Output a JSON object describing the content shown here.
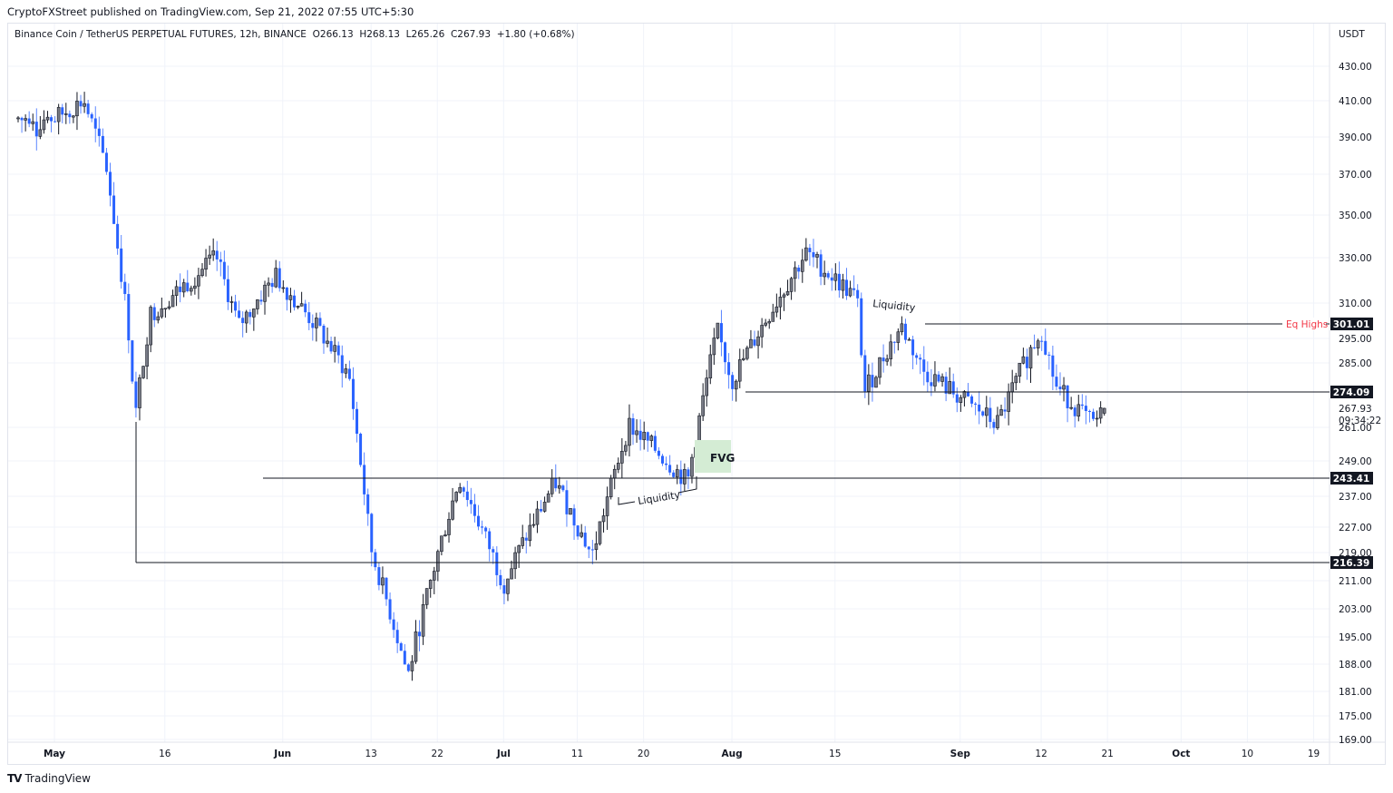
{
  "header": {
    "publisher_line": "CryptoFXStreet published on TradingView.com, Sep 21, 2022 07:55 UTC+5:30"
  },
  "legend": {
    "symbol": "Binance Coin / TetherUS PERPETUAL FUTURES, 12h, BINANCE",
    "open": "O266.13",
    "high": "H268.13",
    "low": "L265.26",
    "close": "C267.93",
    "change": "+1.80 (+0.68%)"
  },
  "footer": {
    "logo_glyph": "TV",
    "brand": "TradingView"
  },
  "colors": {
    "bull": "#787b86",
    "bear": "#2962ff",
    "grid": "#f0f3fa",
    "line": "#131722",
    "eq_highs": "#f23645",
    "fvg": "#d4ecd4"
  },
  "chart_data": {
    "type": "candlestick",
    "title": "Binance Coin / TetherUS PERPETUAL FUTURES, 12h, BINANCE",
    "currency": "USDT",
    "ylabel": "USDT",
    "ylim": [
      169,
      440
    ],
    "grid": true,
    "y_ticks": [
      "430.00",
      "410.00",
      "390.00",
      "370.00",
      "350.00",
      "330.00",
      "310.00",
      "295.00",
      "285.00",
      "261.00",
      "249.00",
      "237.00",
      "227.00",
      "219.00",
      "211.00",
      "203.00",
      "195.00",
      "188.00",
      "181.00",
      "175.00",
      "169.00"
    ],
    "x_ticks": [
      {
        "label": "May",
        "bold": true
      },
      {
        "label": "16",
        "bold": false
      },
      {
        "label": "Jun",
        "bold": true
      },
      {
        "label": "13",
        "bold": false
      },
      {
        "label": "22",
        "bold": false
      },
      {
        "label": "Jul",
        "bold": true
      },
      {
        "label": "11",
        "bold": false
      },
      {
        "label": "20",
        "bold": false
      },
      {
        "label": "Aug",
        "bold": true
      },
      {
        "label": "15",
        "bold": false
      },
      {
        "label": "Sep",
        "bold": true
      },
      {
        "label": "12",
        "bold": false
      },
      {
        "label": "21",
        "bold": false
      },
      {
        "label": "Oct",
        "bold": true
      },
      {
        "label": "10",
        "bold": false
      },
      {
        "label": "19",
        "bold": false
      }
    ],
    "last_price": {
      "value": "267.93",
      "countdown": "09:34:22"
    },
    "ohlc_last": {
      "open": 266.13,
      "high": 268.13,
      "low": 265.26,
      "close": 267.93,
      "change": 1.8,
      "change_pct": 0.68
    },
    "horizontal_levels": [
      {
        "value": "301.01",
        "label": "Eq Highs"
      },
      {
        "value": "274.09",
        "label": ""
      },
      {
        "value": "243.41",
        "label": ""
      },
      {
        "value": "216.39",
        "label": ""
      }
    ],
    "annotations": [
      {
        "text": "Liquidity",
        "near": "243.41 level, mid-July sweep"
      },
      {
        "text": "Liquidity",
        "near": "Aug 24 high ~307"
      },
      {
        "text": "FVG",
        "type": "fair value gap box ~247-256, late July"
      },
      {
        "text": "Eq Highs",
        "level": "301.01"
      }
    ],
    "price_path_close_approx": [
      {
        "date": "May 1",
        "price": 400
      },
      {
        "date": "May 5",
        "price": 410
      },
      {
        "date": "May 8",
        "price": 375
      },
      {
        "date": "May 11",
        "price": 300
      },
      {
        "date": "May 12",
        "price": 265
      },
      {
        "date": "May 14",
        "price": 305
      },
      {
        "date": "May 23",
        "price": 330
      },
      {
        "date": "May 26",
        "price": 300
      },
      {
        "date": "May 31",
        "price": 322
      },
      {
        "date": "Jun 6",
        "price": 298
      },
      {
        "date": "Jun 10",
        "price": 280
      },
      {
        "date": "Jun 13",
        "price": 220
      },
      {
        "date": "Jun 18",
        "price": 185
      },
      {
        "date": "Jun 25",
        "price": 243
      },
      {
        "date": "Jul 1",
        "price": 210
      },
      {
        "date": "Jul 8",
        "price": 242
      },
      {
        "date": "Jul 13",
        "price": 218
      },
      {
        "date": "Jul 18",
        "price": 262
      },
      {
        "date": "Jul 26",
        "price": 242
      },
      {
        "date": "Jul 30",
        "price": 298
      },
      {
        "date": "Aug 1",
        "price": 278
      },
      {
        "date": "Aug 11",
        "price": 332
      },
      {
        "date": "Aug 18",
        "price": 312
      },
      {
        "date": "Aug 19",
        "price": 274
      },
      {
        "date": "Aug 24",
        "price": 300
      },
      {
        "date": "Aug 27",
        "price": 282
      },
      {
        "date": "Sep 6",
        "price": 262
      },
      {
        "date": "Sep 12",
        "price": 299
      },
      {
        "date": "Sep 14",
        "price": 276
      },
      {
        "date": "Sep 19",
        "price": 262
      },
      {
        "date": "Sep 21",
        "price": 267.93
      }
    ]
  }
}
